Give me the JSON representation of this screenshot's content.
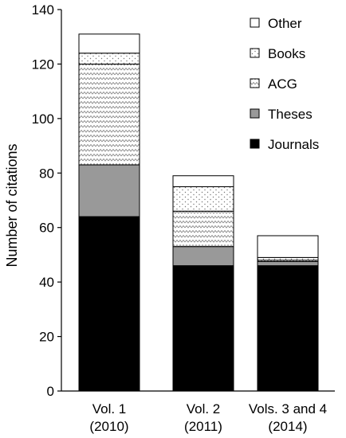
{
  "chart_data": {
    "type": "bar",
    "stacked": true,
    "title": "",
    "xlabel": "",
    "ylabel": "Number of citations",
    "ylim": [
      0,
      140
    ],
    "yticks": [
      0,
      20,
      40,
      60,
      80,
      100,
      120,
      140
    ],
    "grid": false,
    "legend_position": "top-right",
    "categories": [
      [
        "Vol. 1",
        "(2010)"
      ],
      [
        "Vol. 2",
        "(2011)"
      ],
      [
        "Vols. 3 and 4",
        "(2014)"
      ]
    ],
    "series": [
      {
        "name": "Journals",
        "fill": "#000000",
        "pattern": "solid",
        "values": [
          64,
          46,
          46
        ]
      },
      {
        "name": "Theses",
        "fill": "#999999",
        "pattern": "solid",
        "values": [
          19,
          7,
          1.5
        ]
      },
      {
        "name": "ACG",
        "fill": "#ffffff",
        "pattern": "zigzag",
        "values": [
          37,
          13,
          0.5
        ]
      },
      {
        "name": "Books",
        "fill": "#ffffff",
        "pattern": "dots",
        "values": [
          4,
          9,
          1
        ]
      },
      {
        "name": "Other",
        "fill": "#ffffff",
        "pattern": "solid",
        "values": [
          7,
          4,
          8
        ]
      }
    ],
    "legend_order": [
      "Other",
      "Books",
      "ACG",
      "Theses",
      "Journals"
    ]
  }
}
